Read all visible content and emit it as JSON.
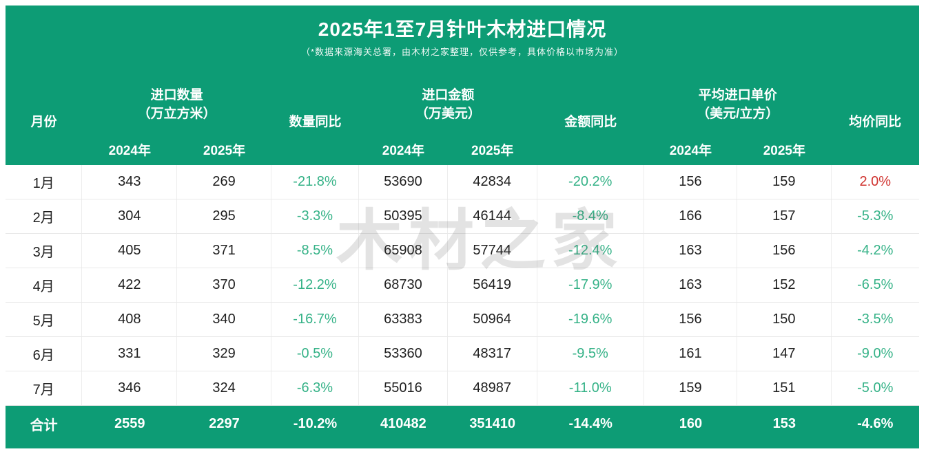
{
  "header": {
    "title": "2025年1至7月针叶木材进口情况",
    "subtitle": "（*数据来源海关总署，由木材之家整理，仅供参考，具体价格以市场为准）"
  },
  "columns": {
    "month": "月份",
    "qty_group": "进口数量",
    "qty_unit": "（万立方米）",
    "qty_yoy": "数量同比",
    "amt_group": "进口金额",
    "amt_unit": "（万美元）",
    "amt_yoy": "金额同比",
    "price_group": "平均进口单价",
    "price_unit": "（美元/立方）",
    "price_yoy": "均价同比",
    "year_2024": "2024年",
    "year_2025": "2025年"
  },
  "watermark": "木材之家",
  "colors": {
    "panel_green": "#0d9c75",
    "yoy_down_green": "#35b287",
    "yoy_up_red": "#d03430",
    "body_text": "#1f1f1f"
  },
  "table": {
    "rows": [
      {
        "month": "1月",
        "qty_2024": "343",
        "qty_2025": "269",
        "qty_yoy": "-21.8%",
        "amt_2024": "53690",
        "amt_2025": "42834",
        "amt_yoy": "-20.2%",
        "price_2024": "156",
        "price_2025": "159",
        "price_yoy": "2.0%",
        "price_yoy_up": true
      },
      {
        "month": "2月",
        "qty_2024": "304",
        "qty_2025": "295",
        "qty_yoy": "-3.3%",
        "amt_2024": "50395",
        "amt_2025": "46144",
        "amt_yoy": "-8.4%",
        "price_2024": "166",
        "price_2025": "157",
        "price_yoy": "-5.3%"
      },
      {
        "month": "3月",
        "qty_2024": "405",
        "qty_2025": "371",
        "qty_yoy": "-8.5%",
        "amt_2024": "65908",
        "amt_2025": "57744",
        "amt_yoy": "-12.4%",
        "price_2024": "163",
        "price_2025": "156",
        "price_yoy": "-4.2%"
      },
      {
        "month": "4月",
        "qty_2024": "422",
        "qty_2025": "370",
        "qty_yoy": "-12.2%",
        "amt_2024": "68730",
        "amt_2025": "56419",
        "amt_yoy": "-17.9%",
        "price_2024": "163",
        "price_2025": "152",
        "price_yoy": "-6.5%"
      },
      {
        "month": "5月",
        "qty_2024": "408",
        "qty_2025": "340",
        "qty_yoy": "-16.7%",
        "amt_2024": "63383",
        "amt_2025": "50964",
        "amt_yoy": "-19.6%",
        "price_2024": "156",
        "price_2025": "150",
        "price_yoy": "-3.5%"
      },
      {
        "month": "6月",
        "qty_2024": "331",
        "qty_2025": "329",
        "qty_yoy": "-0.5%",
        "amt_2024": "53360",
        "amt_2025": "48317",
        "amt_yoy": "-9.5%",
        "price_2024": "161",
        "price_2025": "147",
        "price_yoy": "-9.0%"
      },
      {
        "month": "7月",
        "qty_2024": "346",
        "qty_2025": "324",
        "qty_yoy": "-6.3%",
        "amt_2024": "55016",
        "amt_2025": "48987",
        "amt_yoy": "-11.0%",
        "price_2024": "159",
        "price_2025": "151",
        "price_yoy": "-5.0%"
      }
    ],
    "total": {
      "label": "合计",
      "qty_2024": "2559",
      "qty_2025": "2297",
      "qty_yoy": "-10.2%",
      "amt_2024": "410482",
      "amt_2025": "351410",
      "amt_yoy": "-14.4%",
      "price_2024": "160",
      "price_2025": "153",
      "price_yoy": "-4.6%"
    }
  },
  "chart_data": {
    "type": "table",
    "title": "2025年1至7月针叶木材进口情况",
    "subtitle": "（*数据来源海关总署，由木材之家整理，仅供参考，具体价格以市场为准）",
    "columns": [
      "月份",
      "进口数量2024年(万立方米)",
      "进口数量2025年(万立方米)",
      "数量同比",
      "进口金额2024年(万美元)",
      "进口金额2025年(万美元)",
      "金额同比",
      "平均进口单价2024年(美元/立方)",
      "平均进口单价2025年(美元/立方)",
      "均价同比"
    ],
    "rows": [
      [
        "1月",
        343,
        269,
        "-21.8%",
        53690,
        42834,
        "-20.2%",
        156,
        159,
        "2.0%"
      ],
      [
        "2月",
        304,
        295,
        "-3.3%",
        50395,
        46144,
        "-8.4%",
        166,
        157,
        "-5.3%"
      ],
      [
        "3月",
        405,
        371,
        "-8.5%",
        65908,
        57744,
        "-12.4%",
        163,
        156,
        "-4.2%"
      ],
      [
        "4月",
        422,
        370,
        "-12.2%",
        68730,
        56419,
        "-17.9%",
        163,
        152,
        "-6.5%"
      ],
      [
        "5月",
        408,
        340,
        "-16.7%",
        63383,
        50964,
        "-19.6%",
        156,
        150,
        "-3.5%"
      ],
      [
        "6月",
        331,
        329,
        "-0.5%",
        53360,
        48317,
        "-9.5%",
        161,
        147,
        "-9.0%"
      ],
      [
        "7月",
        346,
        324,
        "-6.3%",
        55016,
        48987,
        "-11.0%",
        159,
        151,
        "-5.0%"
      ],
      [
        "合计",
        2559,
        2297,
        "-10.2%",
        410482,
        351410,
        "-14.4%",
        160,
        153,
        "-4.6%"
      ]
    ]
  }
}
